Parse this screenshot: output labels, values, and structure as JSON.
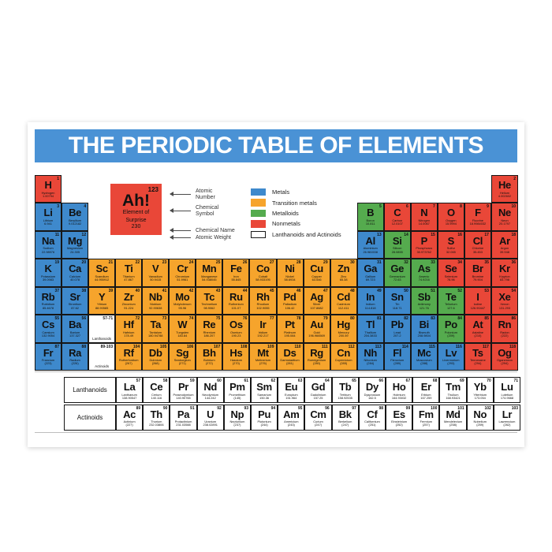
{
  "title": "THE PERIODIC TABLE OF ELEMENTS",
  "colors": {
    "title_bar": "#4a92d5",
    "metals": "#3e89cc",
    "transition_metals": "#f6a42c",
    "metalloids": "#55ab4e",
    "nonmetals": "#e94738",
    "lanthanoids_actinoids": "#ffffff",
    "cell_border": "#161616"
  },
  "example": {
    "number": "123",
    "symbol": "Ah!",
    "name1": "Element of",
    "name2": "Surprise",
    "weight": "230"
  },
  "callouts": [
    {
      "l1": "Atomic",
      "l2": "Number"
    },
    {
      "l1": "Chemical",
      "l2": "Symbol"
    },
    {
      "l1": "Chemical Name",
      "l2": ""
    },
    {
      "l1": "Atomic Weight",
      "l2": ""
    }
  ],
  "legend": {
    "items": [
      {
        "label": "Metals",
        "color": "#3e89cc"
      },
      {
        "label": "Transition metals",
        "color": "#f6a42c"
      },
      {
        "label": "Metalloids",
        "color": "#55ab4e"
      },
      {
        "label": "Nonmetals",
        "color": "#e94738"
      },
      {
        "label": "Lanthanoids and Actinoids",
        "color": "#ffffff"
      }
    ]
  },
  "placeholders": [
    {
      "range": "57-71",
      "label": "Lanthanoids",
      "period": 6,
      "group": 3
    },
    {
      "range": "89-103",
      "label": "Actinoids",
      "period": 7,
      "group": 3
    }
  ],
  "elements": [
    [
      1,
      "H",
      "Hydrogen",
      "1.00794",
      "n",
      1,
      1
    ],
    [
      2,
      "He",
      "Helium",
      "4.002602",
      "n",
      1,
      18
    ],
    [
      3,
      "Li",
      "Lithium",
      "6.941",
      "m",
      2,
      1
    ],
    [
      4,
      "Be",
      "Beryllium",
      "9.012182",
      "m",
      2,
      2
    ],
    [
      5,
      "B",
      "Boron",
      "10.811",
      "md",
      2,
      13
    ],
    [
      6,
      "C",
      "Carbon",
      "12.0107",
      "n",
      2,
      14
    ],
    [
      7,
      "N",
      "Nitrogen",
      "14.0067",
      "n",
      2,
      15
    ],
    [
      8,
      "O",
      "Oxygen",
      "15.9994",
      "n",
      2,
      16
    ],
    [
      9,
      "F",
      "Fluorine",
      "18.9984032",
      "n",
      2,
      17
    ],
    [
      10,
      "Ne",
      "Neon",
      "20.1797",
      "n",
      2,
      18
    ],
    [
      11,
      "Na",
      "Sodium",
      "22.98976",
      "m",
      3,
      1
    ],
    [
      12,
      "Mg",
      "Magnesium",
      "24.305",
      "m",
      3,
      2
    ],
    [
      13,
      "Al",
      "Aluminium",
      "26.981538",
      "m",
      3,
      13
    ],
    [
      14,
      "Si",
      "Silicon",
      "28.0855",
      "md",
      3,
      14
    ],
    [
      15,
      "P",
      "Phosphorus",
      "30.973762",
      "n",
      3,
      15
    ],
    [
      16,
      "S",
      "Sulfur",
      "32.065",
      "n",
      3,
      16
    ],
    [
      17,
      "Cl",
      "Chlorine",
      "35.453",
      "n",
      3,
      17
    ],
    [
      18,
      "Ar",
      "Argon",
      "39.948",
      "n",
      3,
      18
    ],
    [
      19,
      "K",
      "Potassium",
      "39.0983",
      "m",
      4,
      1
    ],
    [
      20,
      "Ca",
      "Calcium",
      "40.078",
      "m",
      4,
      2
    ],
    [
      21,
      "Sc",
      "Scandium",
      "44.955912",
      "t",
      4,
      3
    ],
    [
      22,
      "Ti",
      "Titanium",
      "47.867",
      "t",
      4,
      4
    ],
    [
      23,
      "V",
      "Vanadium",
      "50.9415",
      "t",
      4,
      5
    ],
    [
      24,
      "Cr",
      "Chromium",
      "51.9961",
      "t",
      4,
      6
    ],
    [
      25,
      "Mn",
      "Manganese",
      "54.938045",
      "t",
      4,
      7
    ],
    [
      26,
      "Fe",
      "Iron",
      "55.845",
      "t",
      4,
      8
    ],
    [
      27,
      "Co",
      "Cobalt",
      "58.933195",
      "t",
      4,
      9
    ],
    [
      28,
      "Ni",
      "Nickel",
      "58.6934",
      "t",
      4,
      10
    ],
    [
      29,
      "Cu",
      "Copper",
      "63.546",
      "t",
      4,
      11
    ],
    [
      30,
      "Zn",
      "Zinc",
      "65.38",
      "t",
      4,
      12
    ],
    [
      31,
      "Ga",
      "Gallium",
      "69.723",
      "m",
      4,
      13
    ],
    [
      32,
      "Ge",
      "Germanium",
      "72.63",
      "md",
      4,
      14
    ],
    [
      33,
      "As",
      "Arsenic",
      "74.9216",
      "md",
      4,
      15
    ],
    [
      34,
      "Se",
      "Selenium",
      "78.96",
      "n",
      4,
      16
    ],
    [
      35,
      "Br",
      "Bromine",
      "79.904",
      "n",
      4,
      17
    ],
    [
      36,
      "Kr",
      "Krypton",
      "83.798",
      "n",
      4,
      18
    ],
    [
      37,
      "Rb",
      "Rubidium",
      "85.4678",
      "m",
      5,
      1
    ],
    [
      38,
      "Sr",
      "Strontium",
      "87.62",
      "m",
      5,
      2
    ],
    [
      39,
      "Y",
      "Yttrium",
      "88.90585",
      "t",
      5,
      3
    ],
    [
      40,
      "Zr",
      "Zirconium",
      "91.224",
      "t",
      5,
      4
    ],
    [
      41,
      "Nb",
      "Niobium",
      "92.90638",
      "t",
      5,
      5
    ],
    [
      42,
      "Mo",
      "Molybdenum",
      "95.96",
      "t",
      5,
      6
    ],
    [
      43,
      "Tc",
      "Technetium",
      "98.9062",
      "t",
      5,
      7
    ],
    [
      44,
      "Ru",
      "Ruthenium",
      "101.07",
      "t",
      5,
      8
    ],
    [
      45,
      "Rh",
      "Rhodium",
      "102.9055",
      "t",
      5,
      9
    ],
    [
      46,
      "Pd",
      "Palladium",
      "106.42",
      "t",
      5,
      10
    ],
    [
      47,
      "Ag",
      "Silver",
      "107.8682",
      "t",
      5,
      11
    ],
    [
      48,
      "Cd",
      "Cadmium",
      "112.411",
      "t",
      5,
      12
    ],
    [
      49,
      "In",
      "Indium",
      "114.818",
      "m",
      5,
      13
    ],
    [
      50,
      "Sn",
      "Tin",
      "118.71",
      "m",
      5,
      14
    ],
    [
      51,
      "Sb",
      "Antimony",
      "121.76",
      "md",
      5,
      15
    ],
    [
      52,
      "Te",
      "Tellurium",
      "127.6",
      "md",
      5,
      16
    ],
    [
      53,
      "I",
      "Iodine",
      "126.90447",
      "n",
      5,
      17
    ],
    [
      54,
      "Xe",
      "Xenon",
      "131.293",
      "n",
      5,
      18
    ],
    [
      55,
      "Cs",
      "Caesium",
      "132.9054",
      "m",
      6,
      1
    ],
    [
      56,
      "Ba",
      "Barium",
      "137.327",
      "m",
      6,
      2
    ],
    [
      72,
      "Hf",
      "Hafnium",
      "178.49",
      "t",
      6,
      4
    ],
    [
      73,
      "Ta",
      "Tantalum",
      "180.94788",
      "t",
      6,
      5
    ],
    [
      74,
      "W",
      "Tungsten",
      "183.84",
      "t",
      6,
      6
    ],
    [
      75,
      "Re",
      "Rhenium",
      "186.207",
      "t",
      6,
      7
    ],
    [
      76,
      "Os",
      "Osmium",
      "190.23",
      "t",
      6,
      8
    ],
    [
      77,
      "Ir",
      "Iridium",
      "192.217",
      "t",
      6,
      9
    ],
    [
      78,
      "Pt",
      "Platinum",
      "195.084",
      "t",
      6,
      10
    ],
    [
      79,
      "Au",
      "Gold",
      "196.966569",
      "t",
      6,
      11
    ],
    [
      80,
      "Hg",
      "Mercury",
      "200.59",
      "t",
      6,
      12
    ],
    [
      81,
      "Tl",
      "Thallium",
      "204.3833",
      "m",
      6,
      13
    ],
    [
      82,
      "Pb",
      "Lead",
      "207.2",
      "m",
      6,
      14
    ],
    [
      83,
      "Bi",
      "Bismuth",
      "208.9804",
      "m",
      6,
      15
    ],
    [
      84,
      "Po",
      "Polonium",
      "(209)",
      "md",
      6,
      16
    ],
    [
      85,
      "At",
      "Astatine",
      "(210)",
      "n",
      6,
      17
    ],
    [
      86,
      "Rn",
      "Radon",
      "(222)",
      "n",
      6,
      18
    ],
    [
      87,
      "Fr",
      "Francium",
      "(223)",
      "m",
      7,
      1
    ],
    [
      88,
      "Ra",
      "Radium",
      "(226)",
      "m",
      7,
      2
    ],
    [
      104,
      "Rf",
      "Rutherfordium",
      "(267)",
      "t",
      7,
      4
    ],
    [
      105,
      "Db",
      "Dubnium",
      "(268)",
      "t",
      7,
      5
    ],
    [
      106,
      "Sg",
      "Seaborgium",
      "(271)",
      "t",
      7,
      6
    ],
    [
      107,
      "Bh",
      "Bohrium",
      "(272)",
      "t",
      7,
      7
    ],
    [
      108,
      "Hs",
      "Hassium",
      "(270)",
      "t",
      7,
      8
    ],
    [
      109,
      "Mt",
      "Meitnerium",
      "(276)",
      "t",
      7,
      9
    ],
    [
      110,
      "Ds",
      "Darmstadtium",
      "(281)",
      "t",
      7,
      10
    ],
    [
      111,
      "Rg",
      "Roentgenium",
      "(280)",
      "t",
      7,
      11
    ],
    [
      112,
      "Cn",
      "Copernicium",
      "(285)",
      "t",
      7,
      12
    ],
    [
      113,
      "Nh",
      "Nihonium",
      "(284)",
      "m",
      7,
      13
    ],
    [
      114,
      "Fl",
      "Flerovium",
      "(289)",
      "m",
      7,
      14
    ],
    [
      115,
      "Mc",
      "Moscovium",
      "(288)",
      "m",
      7,
      15
    ],
    [
      116,
      "Lv",
      "Livermorium",
      "(293)",
      "m",
      7,
      16
    ],
    [
      117,
      "Ts",
      "Tennessine",
      "(294)",
      "n",
      7,
      17
    ],
    [
      118,
      "Og",
      "Oganesson",
      "(294)",
      "n",
      7,
      18
    ]
  ],
  "bottom_block": {
    "rows": [
      {
        "label": "Lanthanoids",
        "elements": [
          [
            57,
            "La",
            "Lanthanum",
            "138.90547"
          ],
          [
            58,
            "Ce",
            "Cerium",
            "140.116"
          ],
          [
            59,
            "Pr",
            "Praseodymium",
            "140.90765"
          ],
          [
            60,
            "Nd",
            "Neodymium",
            "144.242"
          ],
          [
            61,
            "Pm",
            "Promethium",
            "(145)"
          ],
          [
            62,
            "Sm",
            "Samarium",
            "150.36"
          ],
          [
            63,
            "Eu",
            "Europium",
            "151.964"
          ],
          [
            64,
            "Gd",
            "Gadolinium",
            "157.25"
          ],
          [
            65,
            "Tb",
            "Terbium",
            "158.92535"
          ],
          [
            66,
            "Dy",
            "Dysprosium",
            "162.5"
          ],
          [
            67,
            "Ho",
            "Holmium",
            "164.93032"
          ],
          [
            68,
            "Er",
            "Erbium",
            "167.259"
          ],
          [
            69,
            "Tm",
            "Thulium",
            "168.93421"
          ],
          [
            70,
            "Yb",
            "Ytterbium",
            "173.054"
          ],
          [
            71,
            "Lu",
            "Lutetium",
            "174.9668"
          ]
        ]
      },
      {
        "label": "Actinoids",
        "elements": [
          [
            89,
            "Ac",
            "Actinium",
            "(227)"
          ],
          [
            90,
            "Th",
            "Thorium",
            "232.03806"
          ],
          [
            91,
            "Pa",
            "Protactinium",
            "231.03588"
          ],
          [
            92,
            "U",
            "Uranium",
            "238.02891"
          ],
          [
            93,
            "Np",
            "Neptunium",
            "(237)"
          ],
          [
            94,
            "Pu",
            "Plutonium",
            "(244)"
          ],
          [
            95,
            "Am",
            "Americium",
            "(243)"
          ],
          [
            96,
            "Cm",
            "Curium",
            "(247)"
          ],
          [
            97,
            "Bk",
            "Berkelium",
            "(247)"
          ],
          [
            98,
            "Cf",
            "Californium",
            "(251)"
          ],
          [
            99,
            "Es",
            "Einsteinium",
            "(252)"
          ],
          [
            100,
            "Fm",
            "Fermium",
            "(257)"
          ],
          [
            101,
            "Md",
            "Mendelevium",
            "(258)"
          ],
          [
            102,
            "No",
            "Nobelium",
            "(259)"
          ],
          [
            103,
            "Lr",
            "Lawrencium",
            "(262)"
          ]
        ]
      }
    ]
  }
}
